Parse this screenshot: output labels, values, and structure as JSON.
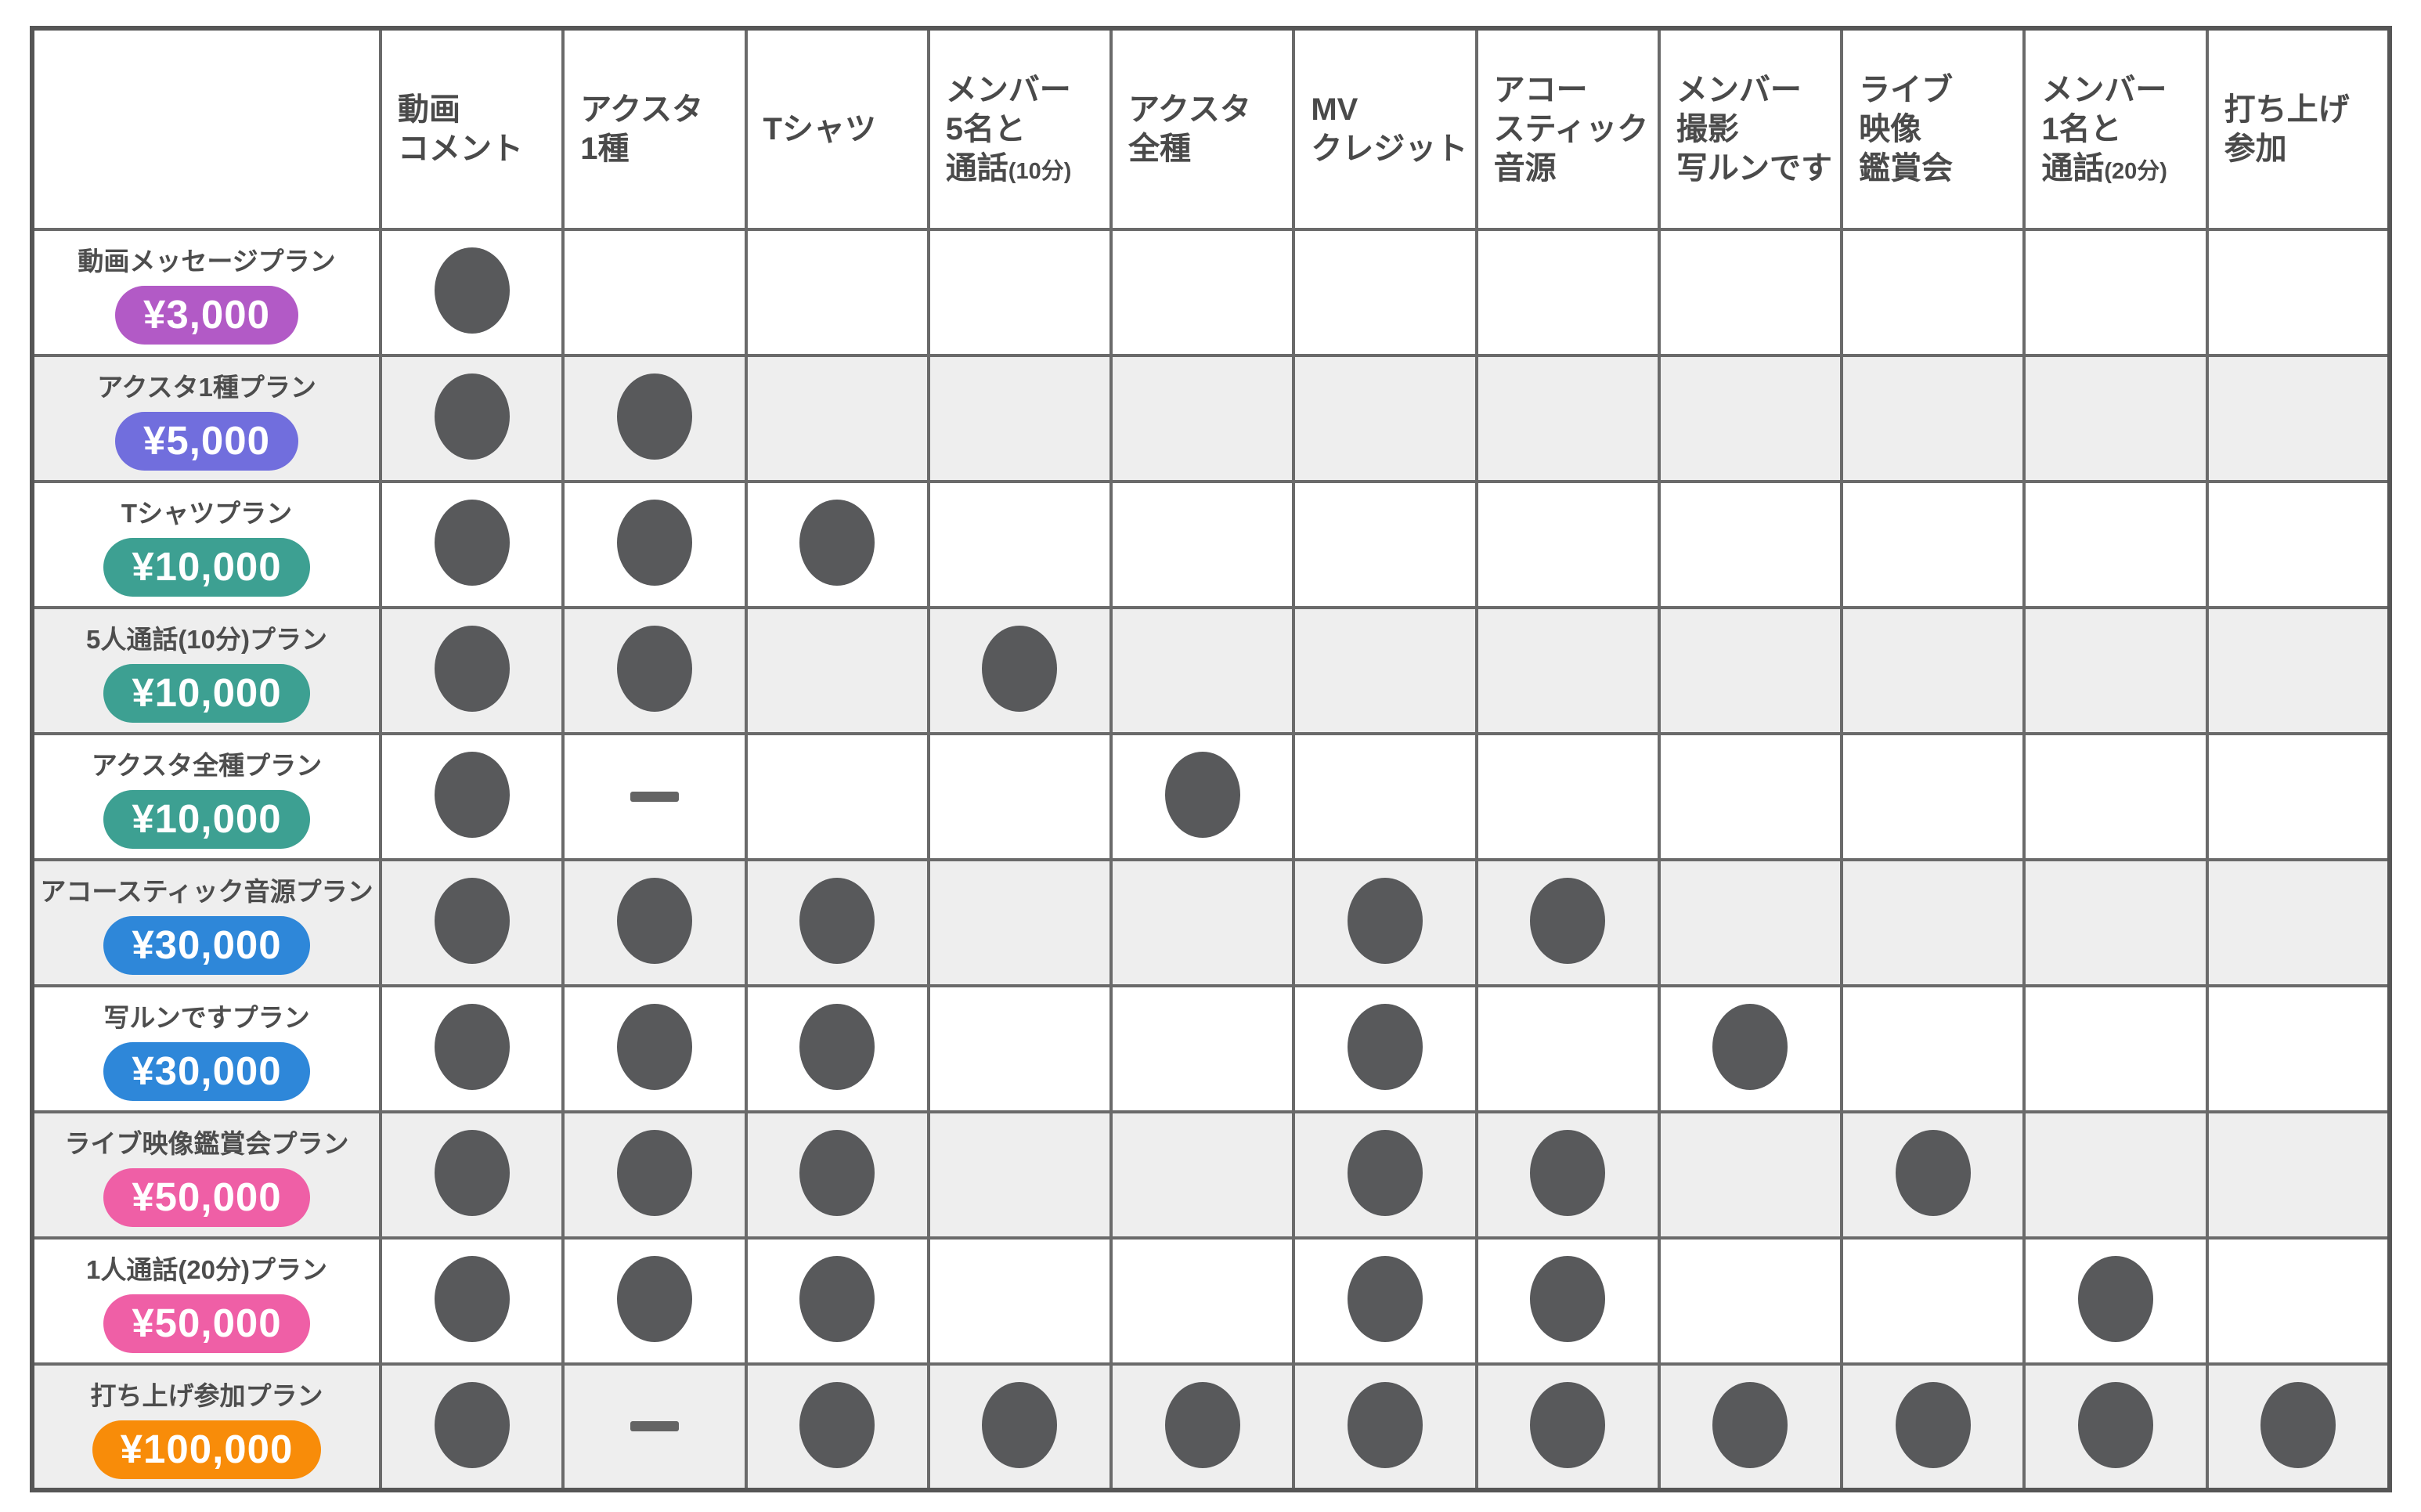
{
  "page_background": "#ffffff",
  "colors": {
    "dot": "#58595b",
    "dash": "#646464",
    "grid_line": "#6a6a6a",
    "outer_border": "#565656",
    "row_alt_background": "#eeeeee",
    "header_text": "#4a4a4a",
    "plan_name_text": "#4d4d4d",
    "badge_purple": "#b25ac6",
    "badge_violet": "#716edd",
    "badge_teal": "#3da092",
    "badge_blue": "#2e87d9",
    "badge_pink": "#ef5fa6",
    "badge_orange": "#f88c09"
  },
  "chart_data": {
    "type": "table",
    "corner_label": "",
    "columns": [
      {
        "label": "動画コメント",
        "display": "動画\nコメント",
        "small": ""
      },
      {
        "label": "アクスタ1種",
        "display": "アクスタ\n1種",
        "small": ""
      },
      {
        "label": "Tシャツ",
        "display": "Tシャツ",
        "small": ""
      },
      {
        "label": "メンバー5名と通話(10分)",
        "display": "メンバー\n5名と\n通話",
        "small": "(10分)"
      },
      {
        "label": "アクスタ全種",
        "display": "アクスタ\n全種",
        "small": ""
      },
      {
        "label": "MVクレジット",
        "display": "MV\nクレジット",
        "small": ""
      },
      {
        "label": "アコースティック音源",
        "display": "アコー\nスティック\n音源",
        "small": ""
      },
      {
        "label": "メンバー撮影写ルンです",
        "display": "メンバー\n撮影\n写ルンです",
        "small": ""
      },
      {
        "label": "ライブ映像鑑賞会",
        "display": "ライブ\n映像\n鑑賞会",
        "small": ""
      },
      {
        "label": "メンバー1名と通話(20分)",
        "display": "メンバー\n1名と\n通話",
        "small": "(20分)"
      },
      {
        "label": "打ち上げ参加",
        "display": "打ち上げ\n参加",
        "small": ""
      }
    ],
    "symbol_legend": {
      "included": "●",
      "not_applicable": "—"
    },
    "rows": [
      {
        "plan": "動画メッセージプラン",
        "price": "¥3,000",
        "badge_color": "#b25ac6",
        "cells": [
          "●",
          "",
          "",
          "",
          "",
          "",
          "",
          "",
          "",
          "",
          ""
        ]
      },
      {
        "plan": "アクスタ1種プラン",
        "price": "¥5,000",
        "badge_color": "#716edd",
        "cells": [
          "●",
          "●",
          "",
          "",
          "",
          "",
          "",
          "",
          "",
          "",
          ""
        ]
      },
      {
        "plan": "Tシャツプラン",
        "price": "¥10,000",
        "badge_color": "#3da092",
        "cells": [
          "●",
          "●",
          "●",
          "",
          "",
          "",
          "",
          "",
          "",
          "",
          ""
        ]
      },
      {
        "plan": "5人通話(10分)プラン",
        "price": "¥10,000",
        "badge_color": "#3da092",
        "cells": [
          "●",
          "●",
          "",
          "●",
          "",
          "",
          "",
          "",
          "",
          "",
          ""
        ]
      },
      {
        "plan": "アクスタ全種プラン",
        "price": "¥10,000",
        "badge_color": "#3da092",
        "cells": [
          "●",
          "—",
          "",
          "",
          "●",
          "",
          "",
          "",
          "",
          "",
          ""
        ]
      },
      {
        "plan": "アコースティック音源プラン",
        "price": "¥30,000",
        "badge_color": "#2e87d9",
        "cells": [
          "●",
          "●",
          "●",
          "",
          "",
          "●",
          "●",
          "",
          "",
          "",
          ""
        ]
      },
      {
        "plan": "写ルンですプラン",
        "price": "¥30,000",
        "badge_color": "#2e87d9",
        "cells": [
          "●",
          "●",
          "●",
          "",
          "",
          "●",
          "",
          "●",
          "",
          "",
          ""
        ]
      },
      {
        "plan": "ライブ映像鑑賞会プラン",
        "price": "¥50,000",
        "badge_color": "#ef5fa6",
        "cells": [
          "●",
          "●",
          "●",
          "",
          "",
          "●",
          "●",
          "",
          "●",
          "",
          ""
        ]
      },
      {
        "plan": "1人通話(20分)プラン",
        "price": "¥50,000",
        "badge_color": "#ef5fa6",
        "cells": [
          "●",
          "●",
          "●",
          "",
          "",
          "●",
          "●",
          "",
          "",
          "●",
          ""
        ]
      },
      {
        "plan": "打ち上げ参加プラン",
        "price": "¥100,000",
        "badge_color": "#f88c09",
        "cells": [
          "●",
          "—",
          "●",
          "●",
          "●",
          "●",
          "●",
          "●",
          "●",
          "●",
          "●"
        ]
      }
    ]
  }
}
